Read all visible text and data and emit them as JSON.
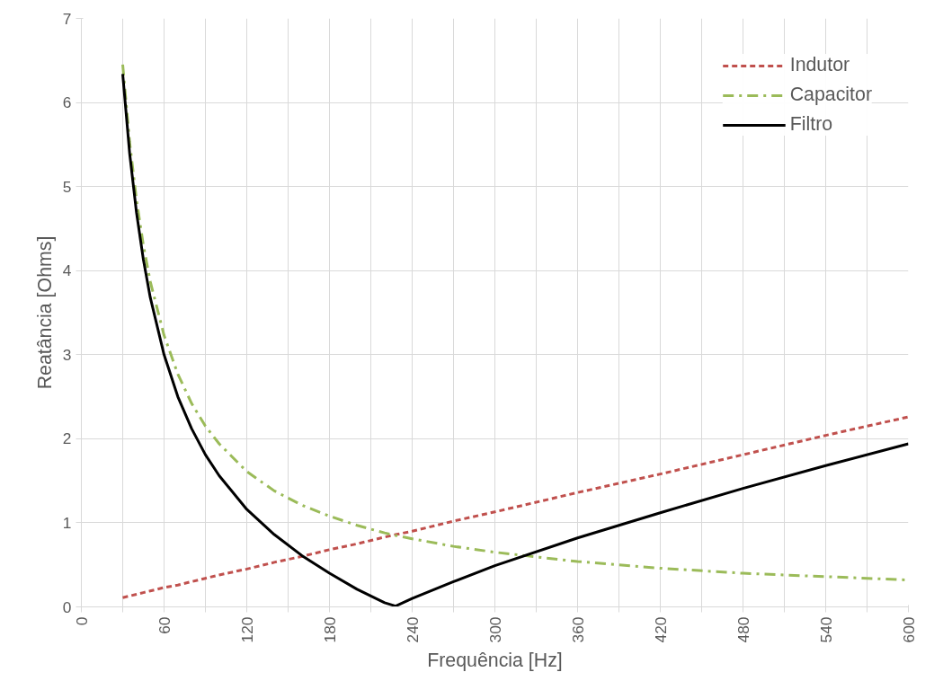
{
  "chart_data": {
    "type": "line",
    "xlabel": "Frequência [Hz]",
    "ylabel": "Reatância [Ohms]",
    "xlim": [
      0,
      600
    ],
    "ylim": [
      0,
      7
    ],
    "xticks": [
      0,
      {
        "value": 30,
        "label": null
      },
      60,
      {
        "value": 90,
        "label": null
      },
      120,
      {
        "value": 150,
        "label": null
      },
      180,
      {
        "value": 210,
        "label": null
      },
      240,
      {
        "value": 270,
        "label": null
      },
      300,
      {
        "value": 330,
        "label": null
      },
      360,
      {
        "value": 390,
        "label": null
      },
      420,
      {
        "value": 450,
        "label": null
      },
      480,
      {
        "value": 510,
        "label": null
      },
      540,
      {
        "value": 570,
        "label": null
      },
      600
    ],
    "yticks": [
      0,
      1,
      2,
      3,
      4,
      5,
      6,
      7
    ],
    "x": [
      30,
      35,
      40,
      45,
      50,
      60,
      70,
      80,
      90,
      100,
      120,
      140,
      160,
      180,
      200,
      220,
      228,
      240,
      270,
      300,
      360,
      420,
      480,
      540,
      600
    ],
    "series": [
      {
        "name": "Indutor",
        "color": "#c0504d",
        "line_style": "dashed",
        "values": [
          0.11,
          0.13,
          0.15,
          0.17,
          0.19,
          0.23,
          0.26,
          0.3,
          0.34,
          0.38,
          0.45,
          0.53,
          0.6,
          0.68,
          0.75,
          0.83,
          0.86,
          0.9,
          1.02,
          1.13,
          1.36,
          1.58,
          1.81,
          2.04,
          2.26
        ]
      },
      {
        "name": "Capacitor",
        "color": "#9bbb59",
        "line_style": "dashdot",
        "values": [
          6.45,
          5.53,
          4.84,
          4.3,
          3.87,
          3.23,
          2.77,
          2.42,
          2.15,
          1.94,
          1.61,
          1.38,
          1.21,
          1.08,
          0.97,
          0.88,
          0.85,
          0.81,
          0.72,
          0.65,
          0.54,
          0.46,
          0.4,
          0.36,
          0.32
        ]
      },
      {
        "name": "Filtro",
        "color": "#000000",
        "line_style": "solid",
        "values": [
          6.34,
          5.4,
          4.69,
          4.13,
          3.68,
          3.0,
          2.5,
          2.12,
          1.81,
          1.56,
          1.16,
          0.86,
          0.61,
          0.4,
          0.21,
          0.05,
          0.01,
          0.1,
          0.3,
          0.49,
          0.82,
          1.12,
          1.41,
          1.68,
          1.94
        ]
      }
    ],
    "grid": true,
    "legend": "top right",
    "marker": "none"
  }
}
